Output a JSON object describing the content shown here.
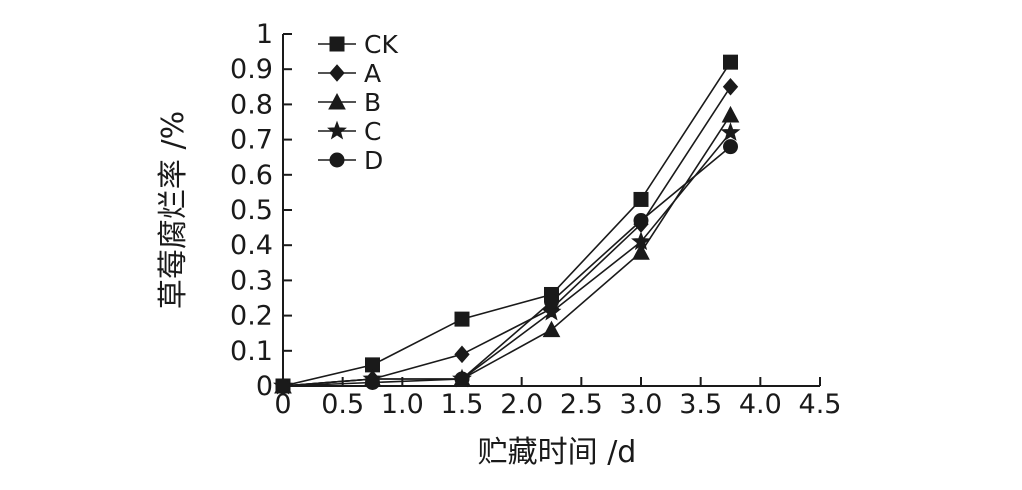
{
  "chart_data": {
    "type": "line",
    "xlabel": "贮藏时间 /d",
    "ylabel": "草莓腐烂率 /%",
    "xlim": [
      0,
      4.5
    ],
    "ylim": [
      0,
      1
    ],
    "x_ticks": [
      "0",
      "0.5",
      "1.0",
      "1.5",
      "2.0",
      "2.5",
      "3.0",
      "3.5",
      "4.0",
      "4.5"
    ],
    "y_ticks": [
      "0",
      "0.1",
      "0.2",
      "0.3",
      "0.4",
      "0.5",
      "0.6",
      "0.7",
      "0.8",
      "0.9",
      "1"
    ],
    "x": [
      0,
      0.75,
      1.5,
      2.25,
      3.0,
      3.75
    ],
    "legend_position": "top-left",
    "grid": false,
    "series": [
      {
        "name": "CK",
        "marker": "square",
        "values": [
          0.0,
          0.06,
          0.19,
          0.26,
          0.53,
          0.92
        ]
      },
      {
        "name": "A",
        "marker": "diamond",
        "values": [
          0.0,
          0.02,
          0.09,
          0.22,
          0.46,
          0.85
        ]
      },
      {
        "name": "B",
        "marker": "triangle",
        "values": [
          0.0,
          0.02,
          0.02,
          0.16,
          0.38,
          0.77
        ]
      },
      {
        "name": "C",
        "marker": "star",
        "values": [
          0.0,
          0.02,
          0.02,
          0.21,
          0.41,
          0.72
        ]
      },
      {
        "name": "D",
        "marker": "circle",
        "values": [
          0.0,
          0.01,
          0.02,
          0.24,
          0.47,
          0.68
        ]
      }
    ]
  }
}
